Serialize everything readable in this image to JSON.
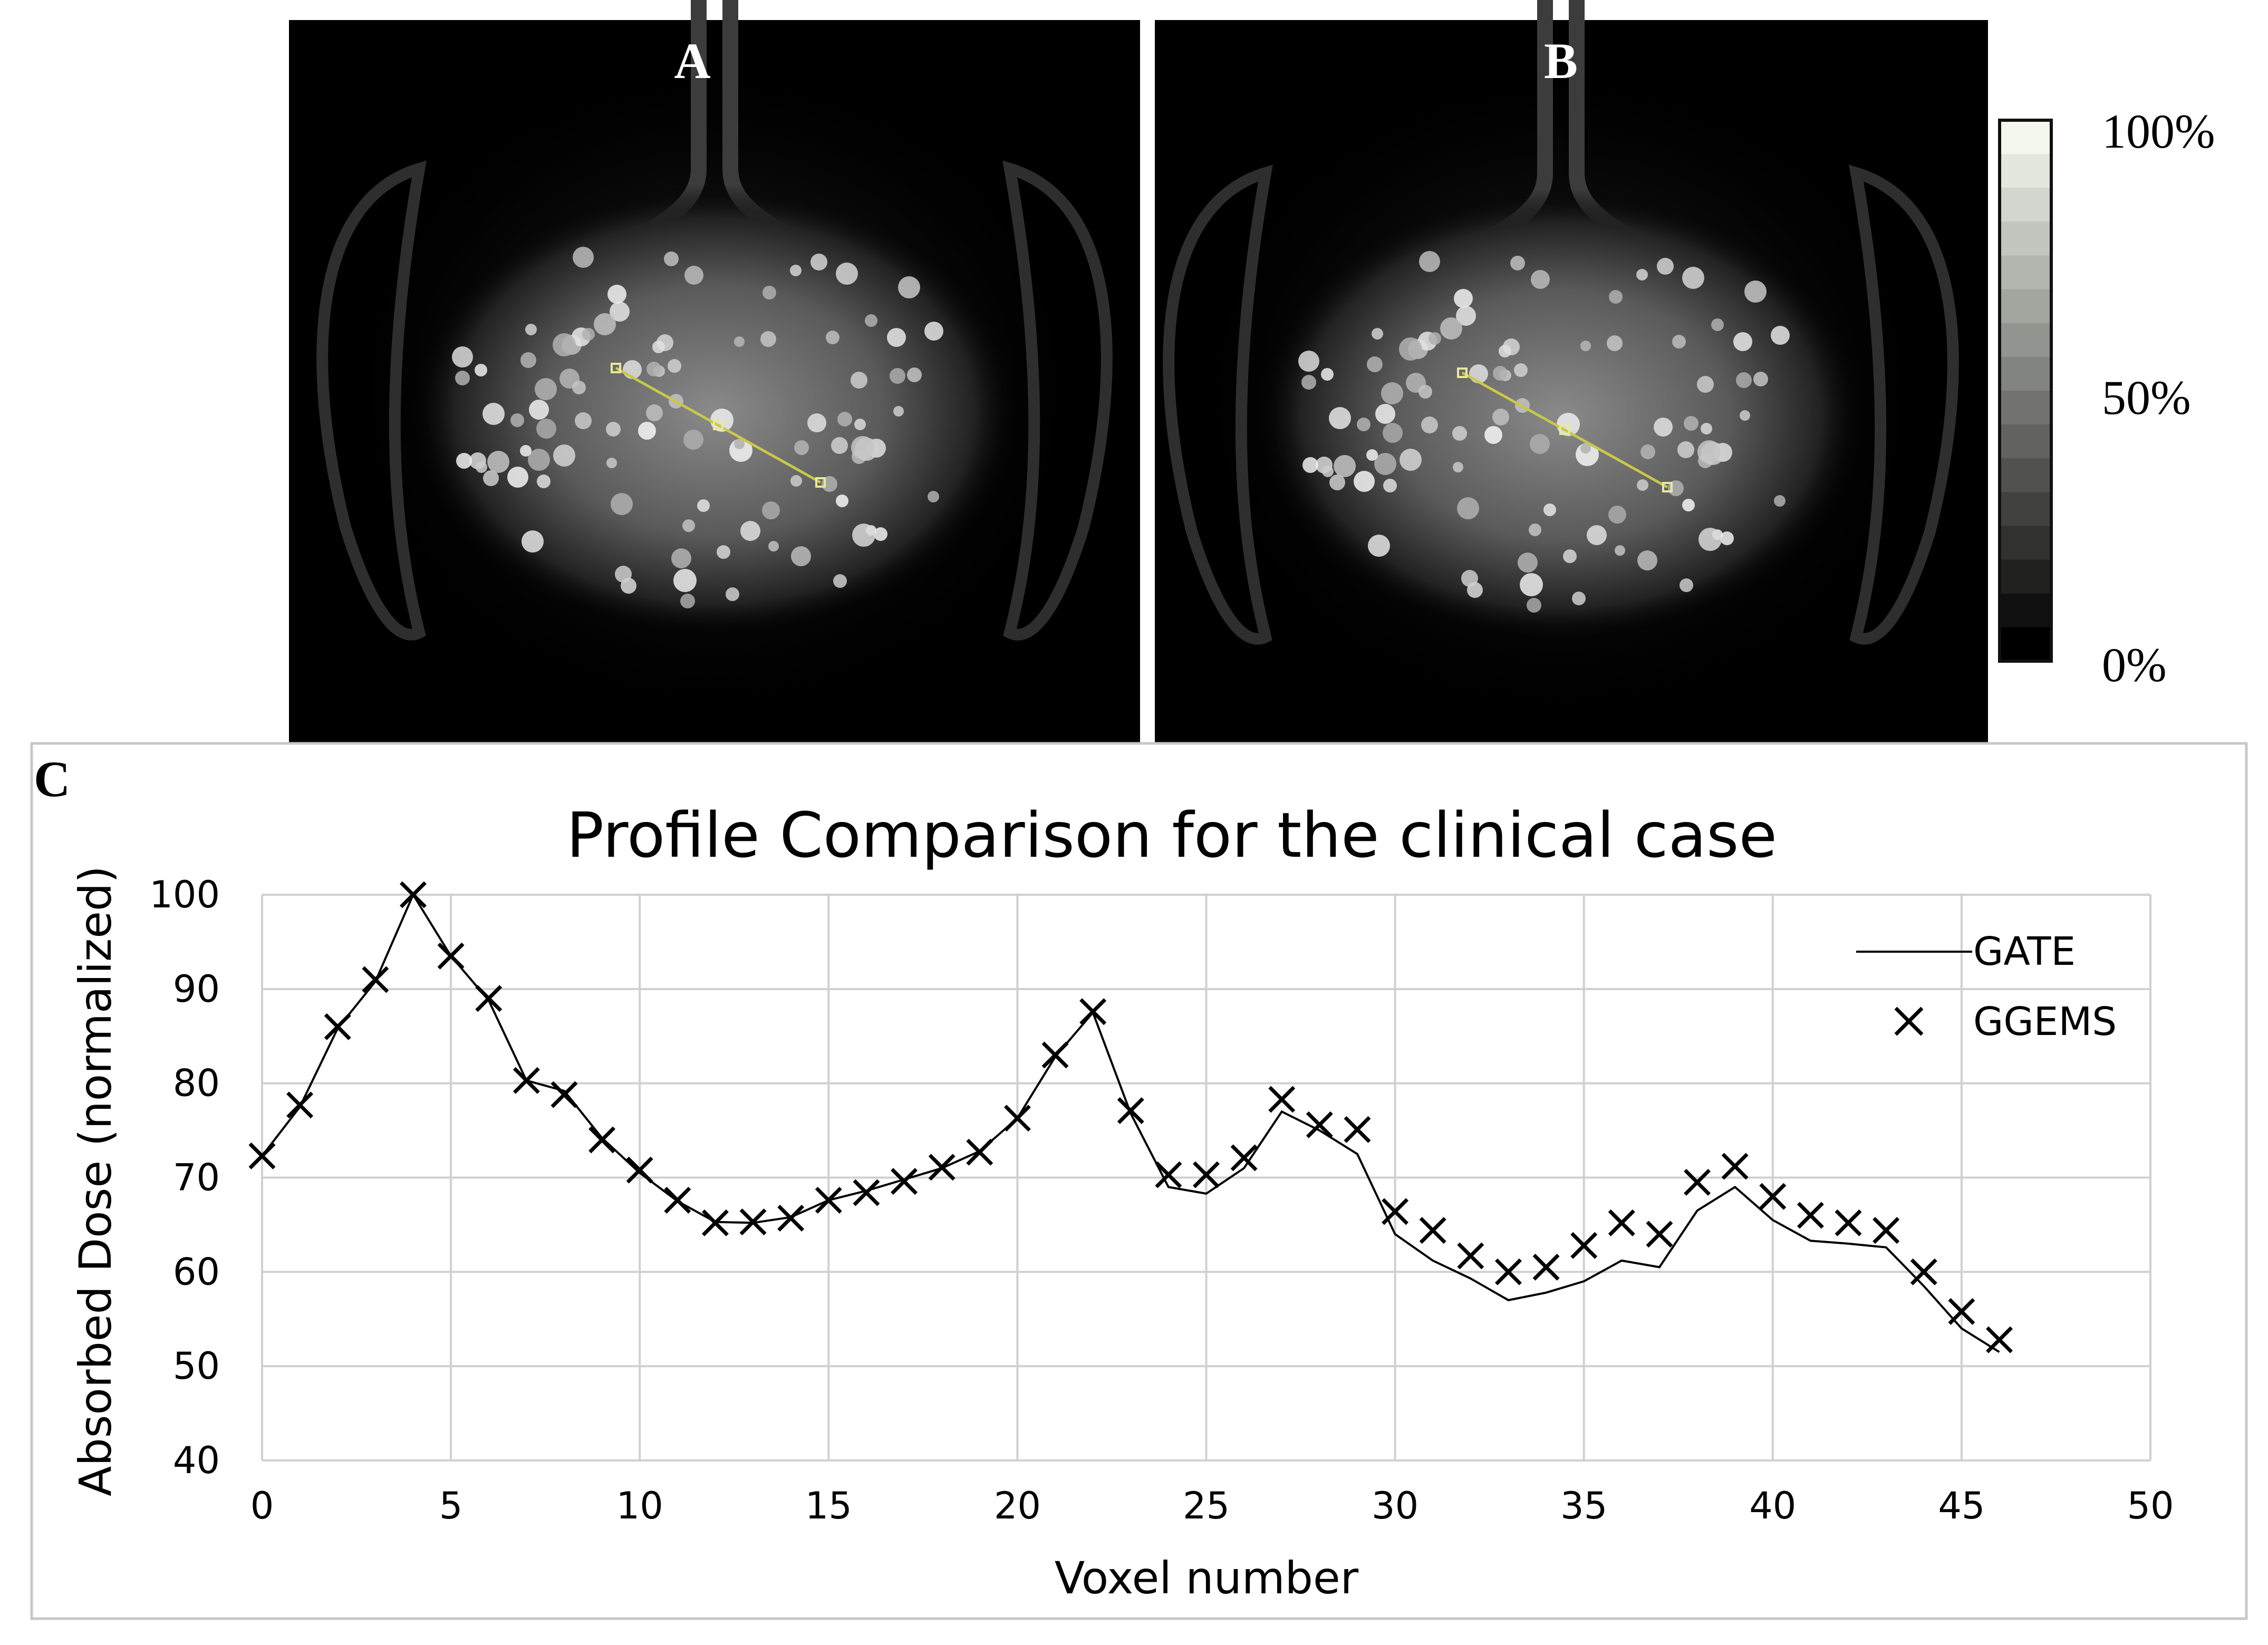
{
  "images": {
    "panel_a_label": "A",
    "panel_b_label": "B"
  },
  "colorbar": {
    "labels": [
      "100%",
      "50%",
      "0%"
    ],
    "levels": 16,
    "low_color": "#000000",
    "high_color": "#f4f7ee"
  },
  "chart_data": {
    "panel_label": "C",
    "type": "line",
    "title": "Profile Comparison for the clinical case",
    "xlabel": "Voxel number",
    "ylabel": "Absorbed Dose (normalized)",
    "xlim": [
      0,
      50
    ],
    "ylim": [
      40,
      100
    ],
    "xticks": [
      0,
      5,
      10,
      15,
      20,
      25,
      30,
      35,
      40,
      45,
      50
    ],
    "yticks": [
      40,
      50,
      60,
      70,
      80,
      90,
      100
    ],
    "grid": true,
    "legend_position": "top-right",
    "series": [
      {
        "name": "GATE",
        "style": "line",
        "x": [
          0,
          1,
          2,
          3,
          4,
          5,
          6,
          7,
          8,
          9,
          10,
          11,
          12,
          13,
          14,
          15,
          16,
          17,
          18,
          19,
          20,
          21,
          22,
          23,
          24,
          25,
          26,
          27,
          28,
          29,
          30,
          31,
          32,
          33,
          34,
          35,
          36,
          37,
          38,
          39,
          40,
          41,
          42,
          43,
          44,
          45,
          46
        ],
        "values": [
          72.3,
          77.5,
          85.8,
          90.8,
          100,
          93.5,
          88.8,
          80.3,
          79.2,
          74.2,
          70.5,
          67.5,
          65.3,
          65.2,
          65.8,
          67.6,
          68.6,
          69.8,
          71,
          72.8,
          76.3,
          82.8,
          87.5,
          76.8,
          69,
          68.3,
          71,
          77,
          75,
          72.5,
          64,
          61.2,
          59.3,
          57,
          57.8,
          59,
          61.2,
          60.5,
          66.5,
          69,
          65.5,
          63.3,
          63,
          62.6,
          58.5,
          54,
          51.5
        ]
      },
      {
        "name": "GGEMS",
        "style": "marker-x",
        "x": [
          0,
          1,
          2,
          3,
          4,
          5,
          6,
          7,
          8,
          9,
          10,
          11,
          12,
          13,
          14,
          15,
          16,
          17,
          18,
          19,
          20,
          21,
          22,
          23,
          24,
          25,
          26,
          27,
          28,
          29,
          30,
          31,
          32,
          33,
          34,
          35,
          36,
          37,
          38,
          39,
          40,
          41,
          42,
          43,
          44,
          45,
          46
        ],
        "values": [
          72.3,
          77.7,
          86,
          91,
          100,
          93.5,
          89,
          80.3,
          78.8,
          74,
          70.8,
          67.6,
          65.2,
          65.3,
          65.7,
          67.6,
          68.4,
          69.6,
          71.1,
          72.7,
          76.3,
          83,
          87.6,
          77.1,
          70.3,
          70.3,
          72.1,
          78.3,
          75.6,
          75.1,
          66.4,
          64.4,
          61.7,
          60,
          60.5,
          62.8,
          65.2,
          64,
          69.5,
          71.2,
          68,
          66,
          65.2,
          64.4,
          60,
          55.8,
          52.8
        ]
      }
    ]
  }
}
